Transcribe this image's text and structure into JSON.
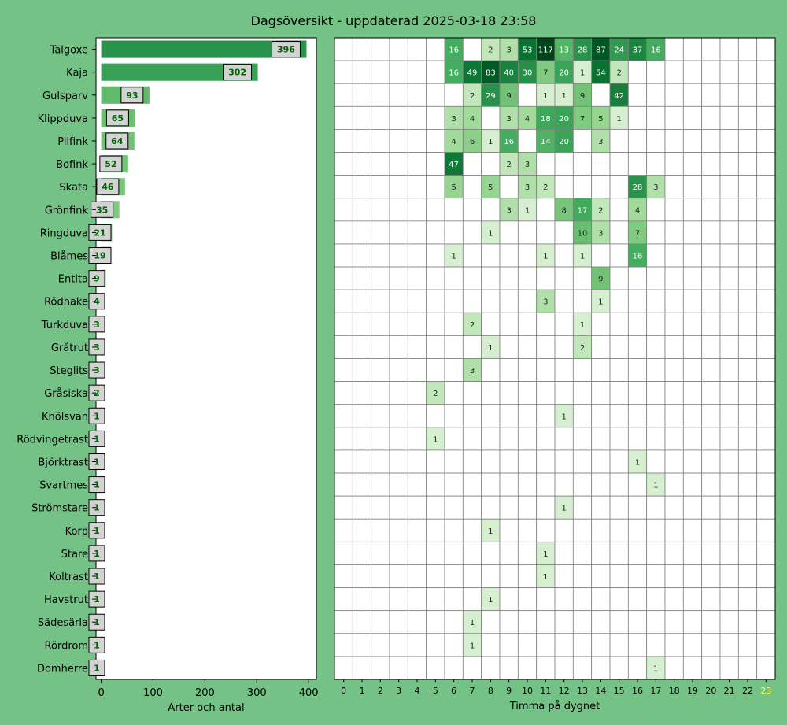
{
  "chart_data": [
    {
      "type": "bar",
      "title": "Dagsöversikt - uppdaterad 2025-03-18 23:58",
      "orientation": "horizontal",
      "xlabel": "Arter och antal",
      "xlim": [
        -10,
        415
      ],
      "xticks": [
        0,
        100,
        200,
        300,
        400
      ],
      "categories": [
        "Talgoxe",
        "Kaja",
        "Gulsparv",
        "Klippduva",
        "Pilfink",
        "Bofink",
        "Skata",
        "Grönfink",
        "Ringduva",
        "Blåmes",
        "Entita",
        "Rödhake",
        "Turkduva",
        "Gråtrut",
        "Steglits",
        "Gråsiska",
        "Knölsvan",
        "Rödvingetrast",
        "Björktrast",
        "Svartmes",
        "Strömstare",
        "Korp",
        "Stare",
        "Koltrast",
        "Havstrut",
        "Sädesärla",
        "Rördrom",
        "Domherre"
      ],
      "values": [
        396,
        302,
        93,
        65,
        64,
        52,
        46,
        35,
        21,
        19,
        9,
        4,
        3,
        3,
        3,
        2,
        1,
        1,
        1,
        1,
        1,
        1,
        1,
        1,
        1,
        1,
        1,
        1
      ]
    },
    {
      "type": "heatmap",
      "xlabel": "Timma på dygnet",
      "xticks": [
        "0",
        "1",
        "2",
        "3",
        "4",
        "5",
        "6",
        "7",
        "8",
        "9",
        "10",
        "11",
        "12",
        "13",
        "14",
        "15",
        "16",
        "17",
        "18",
        "19",
        "20",
        "21",
        "22",
        "23"
      ],
      "highlight_hour": "23",
      "highlight_color": "#ffff33",
      "rows": [
        {
          "Talgoxe": {
            "6": 16,
            "8": 2,
            "9": 3,
            "10": 53,
            "11": 117,
            "12": 13,
            "13": 28,
            "14": 87,
            "15": 24,
            "16": 37,
            "17": 16
          }
        },
        {
          "Kaja": {
            "6": 16,
            "7": 49,
            "8": 83,
            "9": 40,
            "10": 30,
            "11": 7,
            "12": 20,
            "13": 1,
            "14": 54,
            "15": 2
          }
        },
        {
          "Gulsparv": {
            "7": 2,
            "8": 29,
            "9": 9,
            "11": 1,
            "12": 1,
            "13": 9,
            "15": 42
          }
        },
        {
          "Klippduva": {
            "6": 3,
            "7": 4,
            "9": 3,
            "10": 4,
            "11": 18,
            "12": 20,
            "13": 7,
            "14": 5,
            "15": 1
          }
        },
        {
          "Pilfink": {
            "6": 4,
            "7": 6,
            "8": 1,
            "9": 16,
            "11": 14,
            "12": 20,
            "14": 3
          }
        },
        {
          "Bofink": {
            "6": 47,
            "9": 2,
            "10": 3
          }
        },
        {
          "Skata": {
            "6": 5,
            "8": 5,
            "10": 3,
            "11": 2,
            "16": 28,
            "17": 3
          }
        },
        {
          "Grönfink": {
            "9": 3,
            "10": 1,
            "12": 8,
            "13": 17,
            "14": 2,
            "16": 4
          }
        },
        {
          "Ringduva": {
            "8": 1,
            "13": 10,
            "14": 3,
            "16": 7
          }
        },
        {
          "Blåmes": {
            "6": 1,
            "11": 1,
            "13": 1,
            "16": 16
          }
        },
        {
          "Entita": {
            "14": 9
          }
        },
        {
          "Rödhake": {
            "11": 3,
            "14": 1
          }
        },
        {
          "Turkduva": {
            "7": 2,
            "13": 1
          }
        },
        {
          "Gråtrut": {
            "8": 1,
            "13": 2
          }
        },
        {
          "Steglits": {
            "7": 3
          }
        },
        {
          "Gråsiska": {
            "5": 2
          }
        },
        {
          "Knölsvan": {
            "12": 1
          }
        },
        {
          "Rödvingetrast": {
            "5": 1
          }
        },
        {
          "Björktrast": {
            "16": 1
          }
        },
        {
          "Svartmes": {
            "17": 1
          }
        },
        {
          "Strömstare": {
            "12": 1
          }
        },
        {
          "Korp": {
            "8": 1
          }
        },
        {
          "Stare": {
            "11": 1
          }
        },
        {
          "Koltrast": {
            "11": 1
          }
        },
        {
          "Havstrut": {
            "8": 1
          }
        },
        {
          "Sädesärla": {
            "7": 1
          }
        },
        {
          "Rördrom": {
            "7": 1
          }
        },
        {
          "Domherre": {
            "17": 1
          }
        }
      ]
    }
  ]
}
